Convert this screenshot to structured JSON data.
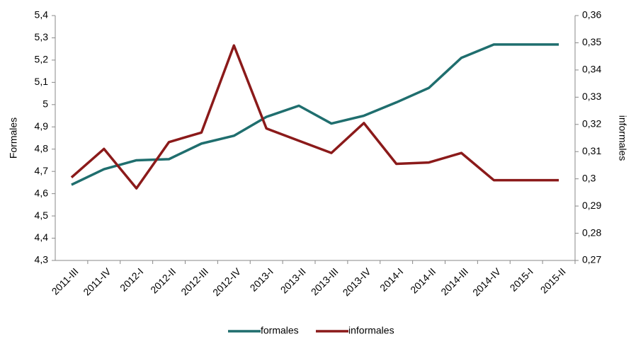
{
  "chart_data": {
    "type": "line",
    "y_label": "Formales",
    "y2_label": "informales",
    "categories": [
      "2011-III",
      "2011-IV",
      "2012-I",
      "2012-II",
      "2012-III",
      "2012-IV",
      "2013-I",
      "2013-II",
      "2013-III",
      "2013-IV",
      "2014-I",
      "2014-II",
      "2014-III",
      "2014-IV",
      "2015-I",
      "2015-II"
    ],
    "series": [
      {
        "name": "formales",
        "color": "#1f6e6e",
        "values": [
          4.64,
          4.71,
          4.75,
          4.755,
          4.825,
          4.86,
          4.945,
          4.995,
          4.915,
          4.95,
          5.01,
          5.075,
          5.21,
          5.27,
          5.27,
          5.27
        ]
      },
      {
        "name": "informales",
        "color": "#8b1a1a",
        "axis": "y2",
        "values": [
          0.3005,
          0.311,
          0.2965,
          0.3135,
          0.317,
          0.349,
          0.3185,
          0.314,
          0.3095,
          0.3205,
          0.3055,
          0.306,
          0.3095,
          0.2995,
          0.2995,
          0.2995
        ]
      }
    ],
    "ylim": [
      4.3,
      5.4
    ],
    "yticks": [
      {
        "value": 4.3,
        "label": "4,3"
      },
      {
        "value": 4.4,
        "label": "4,4"
      },
      {
        "value": 4.5,
        "label": "4,5"
      },
      {
        "value": 4.6,
        "label": "4,6"
      },
      {
        "value": 4.7,
        "label": "4,7"
      },
      {
        "value": 4.8,
        "label": "4,8"
      },
      {
        "value": 4.9,
        "label": "4,9"
      },
      5,
      {
        "value": 5.1,
        "label": "5,1"
      },
      {
        "value": 5.2,
        "label": "5,2"
      },
      {
        "value": 5.3,
        "label": "5,3"
      },
      {
        "value": 5.4,
        "label": "5,4"
      }
    ],
    "y2lim": [
      0.27,
      0.36
    ],
    "y2ticks": [
      {
        "value": 0.27,
        "label": "0,27"
      },
      {
        "value": 0.28,
        "label": "0,28"
      },
      {
        "value": 0.29,
        "label": "0,29"
      },
      {
        "value": 0.3,
        "label": "0,3"
      },
      {
        "value": 0.31,
        "label": "0,31"
      },
      {
        "value": 0.32,
        "label": "0,32"
      },
      {
        "value": 0.33,
        "label": "0,33"
      },
      {
        "value": 0.34,
        "label": "0,34"
      },
      {
        "value": 0.35,
        "label": "0,35"
      },
      {
        "value": 0.36,
        "label": "0,36"
      }
    ],
    "legend": "bottom",
    "grid": false
  }
}
